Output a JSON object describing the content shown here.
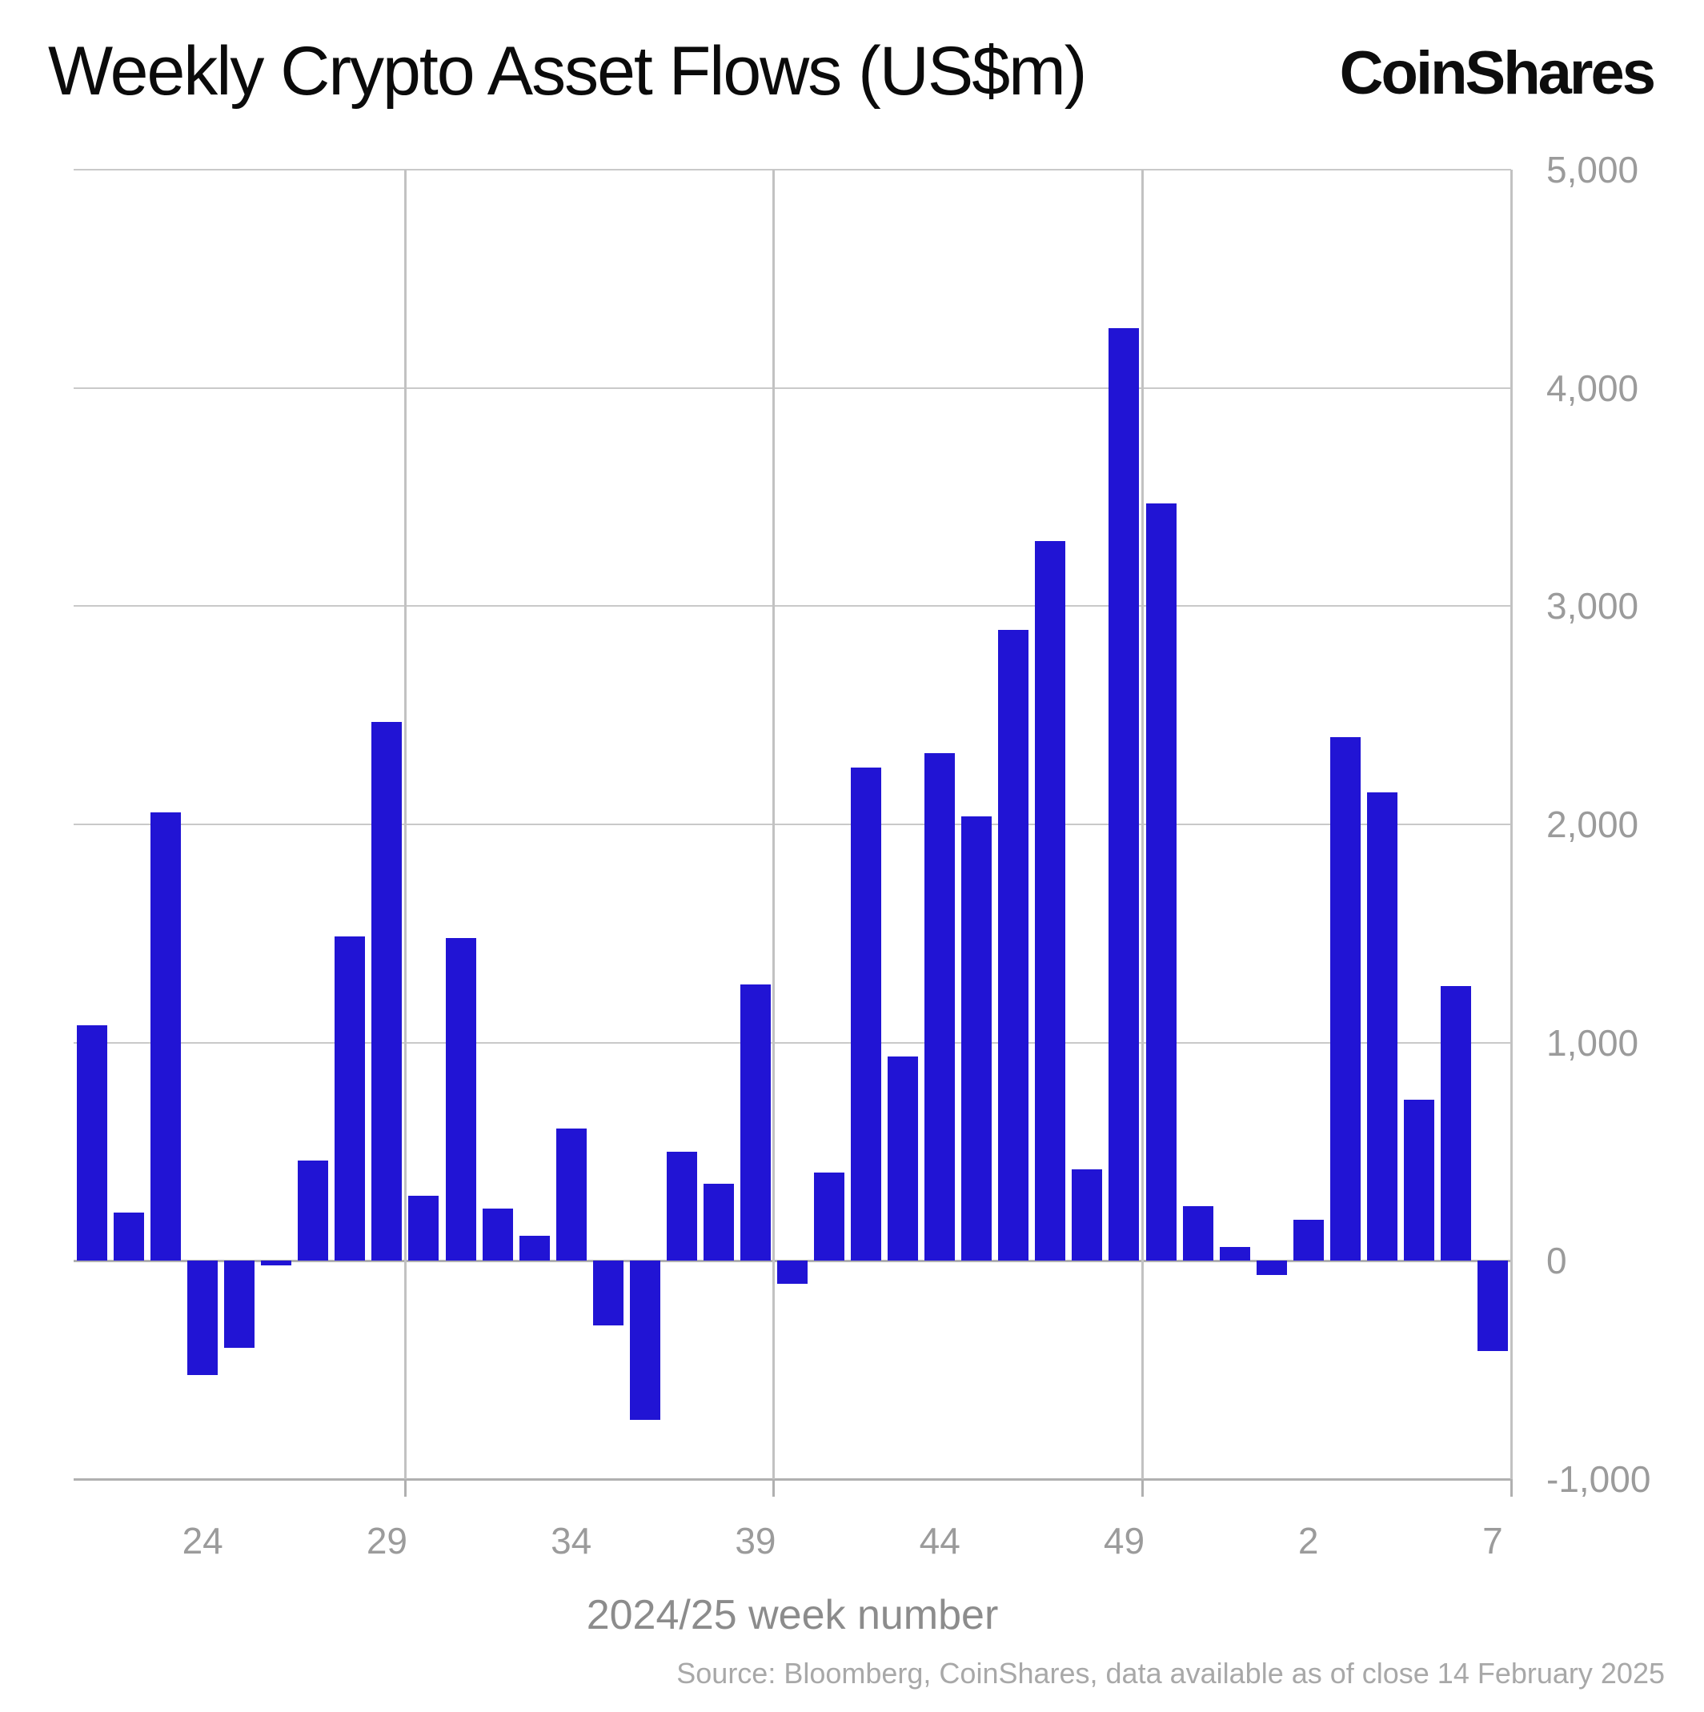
{
  "header": {
    "title": "Weekly Crypto Asset Flows (US$m)",
    "logo": "CoinShares"
  },
  "footer": {
    "source": "Source: Bloomberg, CoinShares, data available as of close 14 February 2025"
  },
  "colors": {
    "bar": "#2114d4",
    "grid_minor": "#c9c9c9",
    "grid_major": "#b0b0b0",
    "tick_text": "#9b9b9b",
    "axis_title_text": "#8c8c8c",
    "source_text": "#a8a8a8",
    "title_text": "#0b0b0b"
  },
  "chart_data": {
    "type": "bar",
    "title": "Weekly Crypto Asset Flows (US$m)",
    "xlabel": "2024/25 week number",
    "ylabel": "",
    "categories": [
      "21",
      "22",
      "23",
      "24",
      "25",
      "26",
      "27",
      "28",
      "29",
      "30",
      "31",
      "32",
      "33",
      "34",
      "35",
      "36",
      "37",
      "38",
      "39",
      "40",
      "41",
      "42",
      "43",
      "44",
      "45",
      "46",
      "47",
      "48",
      "49",
      "50",
      "51",
      "52",
      "1",
      "2",
      "3",
      "4",
      "5",
      "6",
      "7"
    ],
    "values": [
      1080,
      220,
      2055,
      -525,
      -400,
      -20,
      460,
      1485,
      2470,
      300,
      1480,
      240,
      115,
      605,
      -295,
      -730,
      500,
      355,
      1265,
      -105,
      405,
      2260,
      935,
      2325,
      2035,
      2890,
      3300,
      420,
      4275,
      3470,
      250,
      65,
      -65,
      190,
      2400,
      2145,
      740,
      1260,
      -415
    ],
    "x_tick_labels": [
      "24",
      "29",
      "34",
      "39",
      "44",
      "49",
      "2",
      "7"
    ],
    "x_tick_indices": [
      3,
      8,
      13,
      18,
      23,
      28,
      33,
      38
    ],
    "y_tick_values": [
      5000,
      4000,
      3000,
      2000,
      1000,
      0,
      -1000
    ],
    "y_tick_labels": [
      "5,000",
      "4,000",
      "3,000",
      "2,000",
      "1,000",
      "0",
      "-1,000"
    ],
    "vgrid_after_index": [
      8,
      18,
      28,
      38
    ],
    "ylim": [
      -1000,
      5000
    ],
    "grid": true,
    "legend": false
  }
}
